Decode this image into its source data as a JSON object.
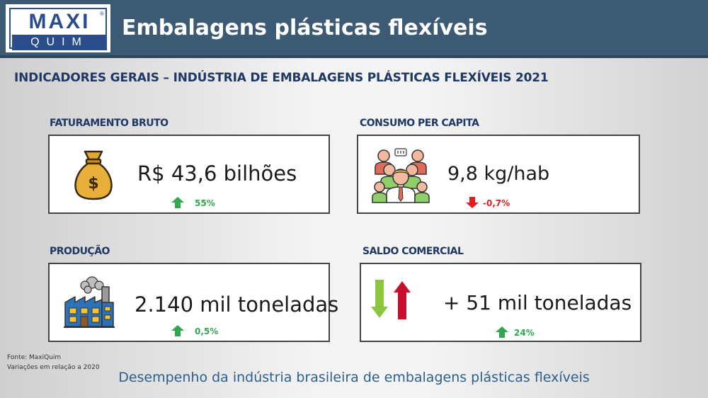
{
  "header": {
    "logo_top": "MAXI",
    "logo_bottom": "QUIM",
    "title": "Embalagens plásticas flexíveis"
  },
  "subtitle": "INDICADORES GERAIS – INDÚSTRIA DE EMBALAGENS PLÁSTICAS FLEXÍVEIS 2021",
  "indicators": {
    "faturamento": {
      "label": "FATURAMENTO BRUTO",
      "value": "R$ 43,6 bilhões",
      "change": "55%",
      "direction": "up",
      "icon": "money-bag-icon"
    },
    "consumo": {
      "label": "CONSUMO PER CAPITA",
      "value": "9,8 kg/hab",
      "change": "-0,7%",
      "direction": "down",
      "icon": "people-group-icon"
    },
    "producao": {
      "label": "PRODUÇÃO",
      "value": "2.140 mil toneladas",
      "change": "0,5%",
      "direction": "up",
      "icon": "factory-icon"
    },
    "saldo": {
      "label": "SALDO COMERCIAL",
      "value": "+ 51 mil toneladas",
      "change": "24%",
      "direction": "up",
      "icon": "import-export-arrows-icon"
    }
  },
  "footnotes": {
    "source": "Fonte: MaxiQuim",
    "variation": "Variações em relação a 2020"
  },
  "footer_caption": "Desempenho da indústria brasileira de embalagens plásticas flexíveis",
  "colors": {
    "header_bg": "#3c5a73",
    "brand_blue": "#2b4d8c",
    "label_navy": "#1f3864",
    "up_green": "#2fa84f",
    "down_red": "#e02020",
    "caption_blue": "#2e5f8c"
  }
}
